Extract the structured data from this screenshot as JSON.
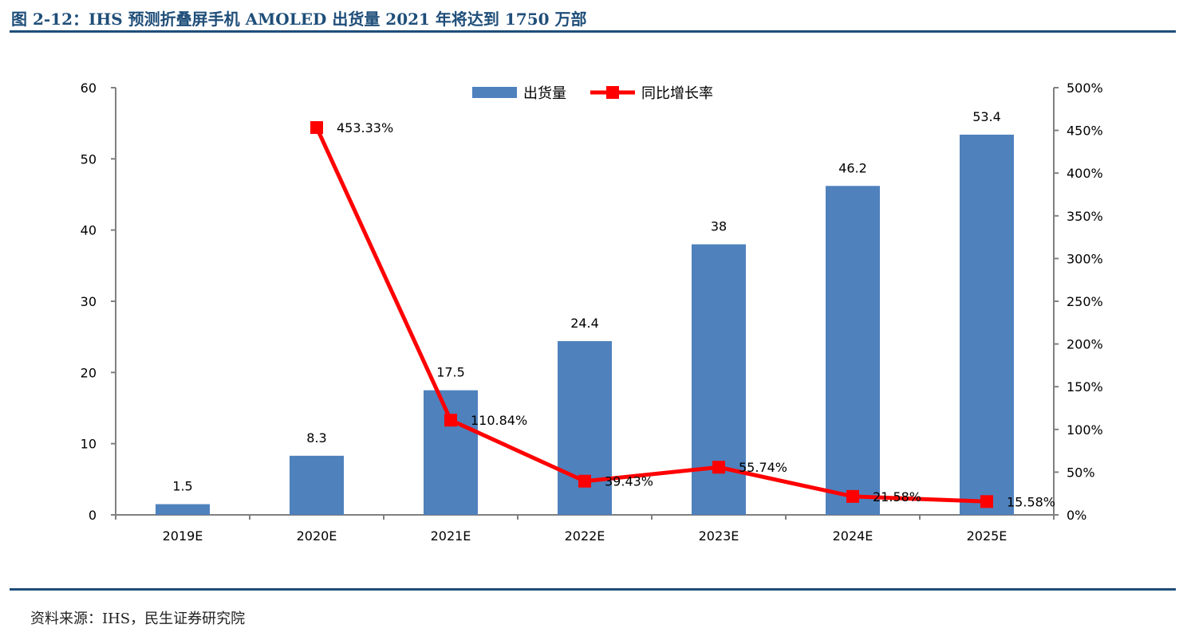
{
  "header": {
    "title": "图 2-12：IHS 预测折叠屏手机 AMOLED 出货量 2021 年将达到 1750 万部"
  },
  "footer": {
    "source": "资料来源：IHS，民生证券研究院"
  },
  "chart_data": {
    "type": "bar",
    "categories": [
      "2019E",
      "2020E",
      "2021E",
      "2022E",
      "2023E",
      "2024E",
      "2025E"
    ],
    "series": [
      {
        "name": "出货量",
        "kind": "bar",
        "axis": "left",
        "color": "#4f81bd",
        "values": [
          1.5,
          8.3,
          17.5,
          24.4,
          38,
          46.2,
          53.4
        ],
        "labels": [
          "1.5",
          "8.3",
          "17.5",
          "24.4",
          "38",
          "46.2",
          "53.4"
        ]
      },
      {
        "name": "同比增长率",
        "kind": "line",
        "axis": "right",
        "color": "#ff0000",
        "values": [
          null,
          453.33,
          110.84,
          39.43,
          55.74,
          21.58,
          15.58
        ],
        "labels": [
          "",
          "453.33%",
          "110.84%",
          "39.43%",
          "55.74%",
          "21.58%",
          "15.58%"
        ]
      }
    ],
    "y_left": {
      "min": 0,
      "max": 60,
      "ticks": [
        "0",
        "10",
        "20",
        "30",
        "40",
        "50",
        "60"
      ]
    },
    "y_right": {
      "min": 0,
      "max": 500,
      "ticks": [
        "0%",
        "50%",
        "100%",
        "150%",
        "200%",
        "250%",
        "300%",
        "350%",
        "400%",
        "450%",
        "500%"
      ]
    },
    "grid": false,
    "legend": "top-center"
  }
}
